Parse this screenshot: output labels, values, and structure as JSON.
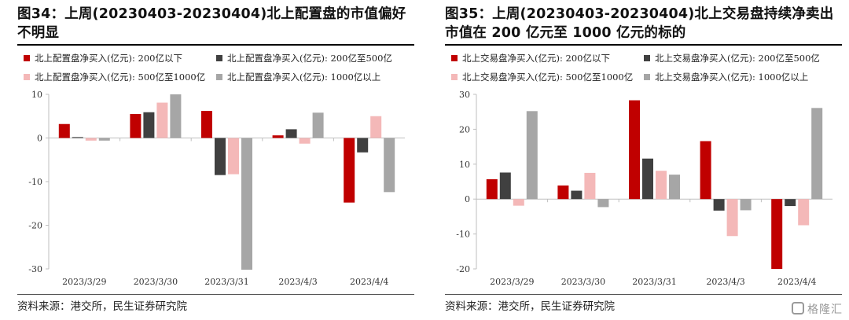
{
  "charts": [
    {
      "title": "图34：上周(20230403-20230404)北上配置盘的市值偏好不明显",
      "source": "资料来源：港交所，民生证券研究院",
      "chart_data": {
        "type": "bar",
        "categories": [
          "2023/3/29",
          "2023/3/30",
          "2023/3/31",
          "2023/4/3",
          "2023/4/4"
        ],
        "series": [
          {
            "name": "北上配置盘净买入(亿元): 200亿以下",
            "color": "#c00000",
            "values": [
              3.2,
              5.5,
              6.2,
              0.6,
              -14.8
            ]
          },
          {
            "name": "北上配置盘净买入(亿元): 200亿至500亿",
            "color": "#404040",
            "values": [
              0.2,
              5.9,
              -8.5,
              2.0,
              -3.3
            ]
          },
          {
            "name": "北上配置盘净买入(亿元): 500亿至1000亿",
            "color": "#f4b8b8",
            "values": [
              -0.6,
              8.1,
              -8.3,
              -1.3,
              5.0
            ]
          },
          {
            "name": "北上配置盘净买入(亿元): 1000亿以上",
            "color": "#a6a6a6",
            "values": [
              -0.6,
              10.0,
              -30.2,
              5.8,
              -12.4
            ]
          }
        ],
        "ylim": [
          -30,
          10
        ],
        "yticks": [
          -30,
          -20,
          -10,
          0,
          10
        ],
        "ytick_labels": [
          "-30",
          "-20",
          "-10",
          "0",
          "10"
        ],
        "grid": false,
        "legend": "top"
      }
    },
    {
      "title": "图35：上周(20230403-20230404)北上交易盘持续净卖出市值在 200 亿元至 1000 亿元的标的",
      "source": "资料来源：港交所，民生证券研究院",
      "chart_data": {
        "type": "bar",
        "categories": [
          "2023/3/29",
          "2023/3/30",
          "2023/3/31",
          "2023/4/3",
          "2023/4/4"
        ],
        "series": [
          {
            "name": "北上交易盘净买入(亿元): 200亿以下",
            "color": "#c00000",
            "values": [
              5.7,
              3.9,
              28.3,
              16.6,
              -20.0
            ]
          },
          {
            "name": "北上交易盘净买入(亿元): 200亿至500亿",
            "color": "#404040",
            "values": [
              7.6,
              2.4,
              11.6,
              -3.3,
              -2.0
            ]
          },
          {
            "name": "北上交易盘净买入(亿元): 500亿至1000亿",
            "color": "#f4b8b8",
            "values": [
              -1.9,
              7.5,
              8.1,
              -10.6,
              -7.5
            ]
          },
          {
            "name": "北上交易盘净买入(亿元): 1000亿以上",
            "color": "#a6a6a6",
            "values": [
              25.2,
              -2.3,
              7.0,
              -3.2,
              26.1
            ]
          }
        ],
        "ylim": [
          -20,
          30
        ],
        "yticks": [
          -20,
          -10,
          0,
          10,
          20,
          30
        ],
        "ytick_labels": [
          "-20",
          "-10",
          "0",
          "10",
          "20",
          "30"
        ],
        "grid": false,
        "legend": "top"
      }
    }
  ],
  "watermark": {
    "text": "格隆汇",
    "icon": "gelonghui-logo-icon"
  }
}
